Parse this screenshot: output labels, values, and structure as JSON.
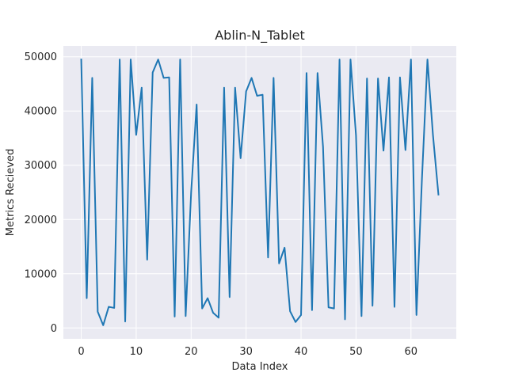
{
  "chart_data": {
    "type": "line",
    "title": "Ablin-N_Tablet",
    "xlabel": "Data Index",
    "ylabel": "Metrics Recieved",
    "xlim": [
      -3.25,
      68.25
    ],
    "ylim": [
      -2000,
      52000
    ],
    "xticks": [
      0,
      10,
      20,
      30,
      40,
      50,
      60
    ],
    "yticks": [
      0,
      10000,
      20000,
      30000,
      40000,
      50000
    ],
    "grid": true,
    "legend": "none",
    "colors": {
      "line": "#1f77b4",
      "plot_bg": "#eaeaf2",
      "grid": "#ffffff"
    },
    "series": [
      {
        "x": [
          0,
          1,
          2,
          3,
          4,
          5,
          6,
          7,
          8,
          9,
          10,
          11,
          12,
          13,
          14,
          15,
          16,
          17,
          18,
          19,
          20,
          21,
          22,
          23,
          24,
          25,
          26,
          27,
          28,
          29,
          30,
          31,
          32,
          33,
          34,
          35,
          36,
          37,
          38,
          39,
          40,
          41,
          42,
          43,
          44,
          45,
          46,
          47,
          48,
          49,
          50,
          51,
          52,
          53,
          54,
          55,
          56,
          57,
          58,
          59,
          60,
          61,
          62,
          63,
          64,
          65
        ],
        "values": [
          49500,
          5500,
          46100,
          3000,
          500,
          3900,
          3700,
          49500,
          1200,
          49500,
          35600,
          44300,
          12600,
          47100,
          49500,
          46100,
          46200,
          2100,
          49500,
          2200,
          25000,
          41200,
          3600,
          5500,
          2800,
          1900,
          44300,
          5700,
          44300,
          31300,
          43600,
          46100,
          42800,
          43000,
          13000,
          46100,
          11900,
          14800,
          3100,
          1100,
          2400,
          47000,
          3300,
          47000,
          33400,
          3800,
          3600,
          49500,
          1600,
          49500,
          35500,
          2200,
          46000,
          4100,
          46000,
          32700,
          46200,
          3900,
          46200,
          32800,
          49500,
          2400,
          27500,
          49500,
          35600,
          24600
        ]
      }
    ]
  }
}
